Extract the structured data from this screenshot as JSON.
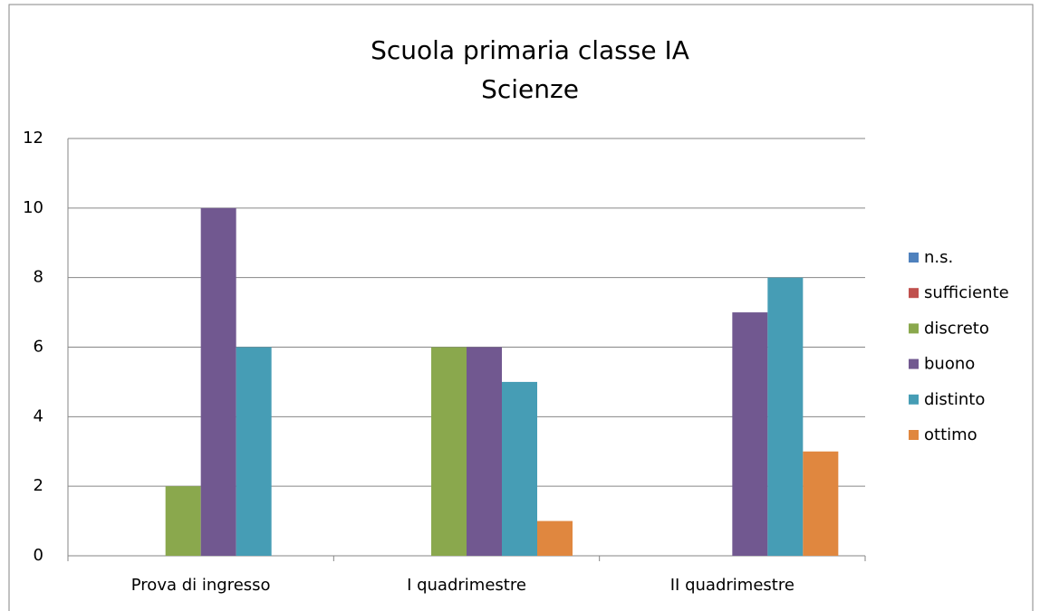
{
  "chart_data": {
    "type": "bar",
    "title": "Scuola primaria classe IA",
    "subtitle": "Scienze",
    "categories": [
      "Prova di ingresso",
      "I quadrimestre",
      "II quadrimestre"
    ],
    "series": [
      {
        "name": "n.s.",
        "color": "#4f81bd",
        "values": [
          0,
          0,
          0
        ]
      },
      {
        "name": "sufficiente",
        "color": "#c0504d",
        "values": [
          0,
          0,
          0
        ]
      },
      {
        "name": "discreto",
        "color": "#8aa84d",
        "values": [
          2,
          6,
          0
        ]
      },
      {
        "name": "buono",
        "color": "#715890",
        "values": [
          10,
          6,
          7
        ]
      },
      {
        "name": "distinto",
        "color": "#469db5",
        "values": [
          6,
          5,
          8
        ]
      },
      {
        "name": "ottimo",
        "color": "#e0873f",
        "values": [
          0,
          1,
          3
        ]
      }
    ],
    "ylim": [
      0,
      12
    ],
    "yticks": [
      0,
      2,
      4,
      6,
      8,
      10,
      12
    ],
    "grid": true,
    "legend": "right"
  }
}
